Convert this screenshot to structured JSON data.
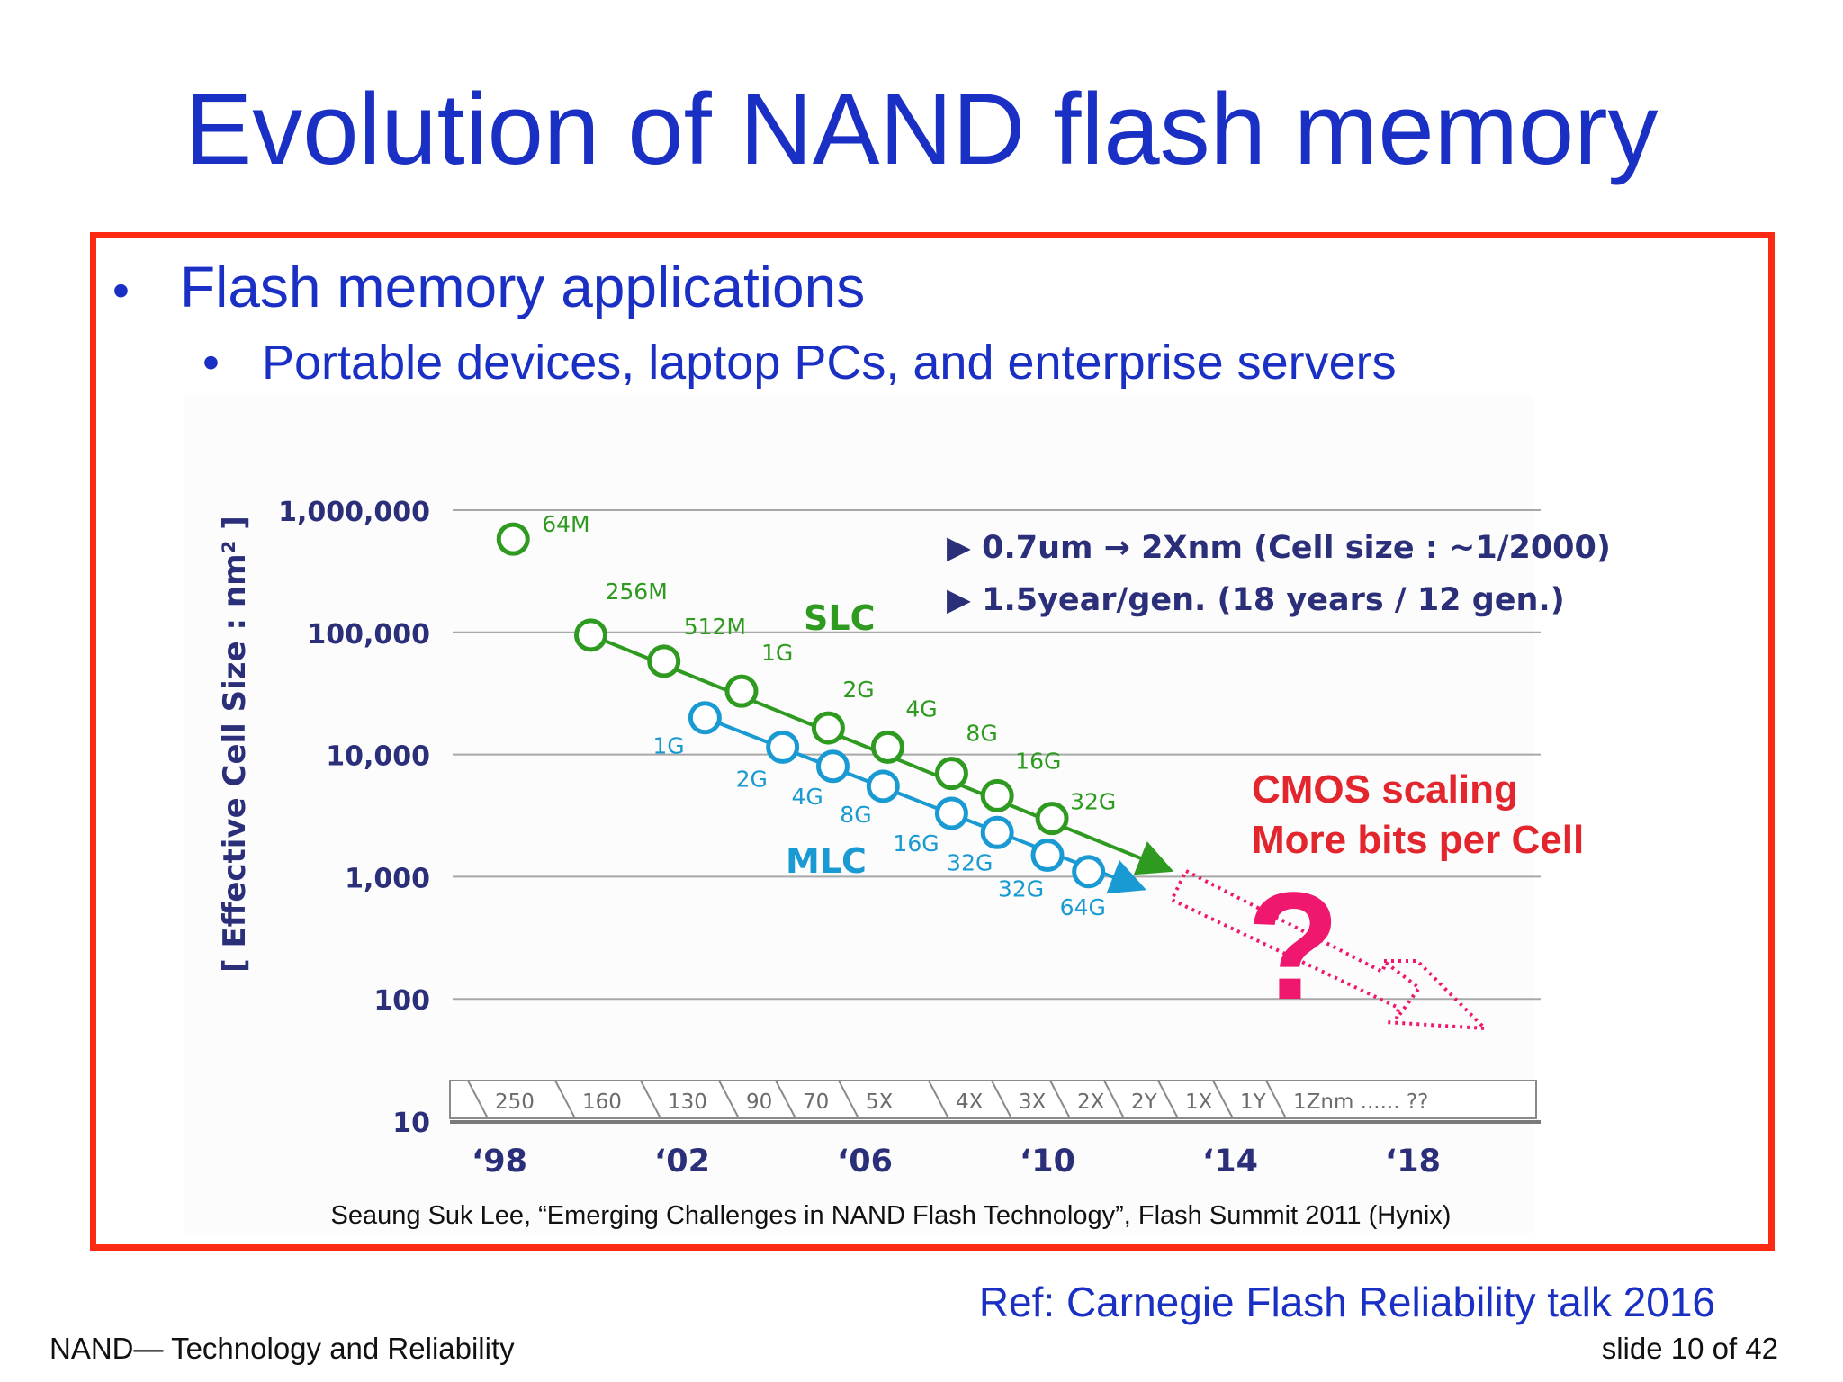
{
  "slide": {
    "title": "Evolution of NAND flash memory",
    "bullet_level1": "Flash memory applications",
    "bullet_level2": "Portable devices, laptop PCs, and enterprise servers",
    "bullet_symbol": "•",
    "reference": "Ref: Carnegie Flash Reliability talk 2016",
    "footer_left": "NAND— Technology and Reliability",
    "footer_right": "slide 10 of 42"
  },
  "colors": {
    "title": "#1a2fc4",
    "frame": "#ff2a12",
    "slc": "#2e9a1f",
    "mlc": "#1a9ad2",
    "axis_text": "#2b2f7a",
    "emphasis": "#e3262e",
    "question": "#f0176e"
  },
  "chart_data": {
    "type": "scatter",
    "scale": "log",
    "ylabel": "[ Effective Cell Size : nm² ]",
    "ylim": [
      10,
      1000000
    ],
    "y_ticks": [
      {
        "value": 1000000,
        "label": "1,000,000"
      },
      {
        "value": 100000,
        "label": "100,000"
      },
      {
        "value": 10000,
        "label": "10,000"
      },
      {
        "value": 1000,
        "label": "1,000"
      },
      {
        "value": 100,
        "label": "100"
      },
      {
        "value": 10,
        "label": "10"
      }
    ],
    "xlim": [
      1998,
      2020
    ],
    "x_ticks": [
      {
        "value": 1998,
        "label": "‘98"
      },
      {
        "value": 2002,
        "label": "‘02"
      },
      {
        "value": 2006,
        "label": "‘06"
      },
      {
        "value": 2010,
        "label": "‘10"
      },
      {
        "value": 2014,
        "label": "‘14"
      },
      {
        "value": 2018,
        "label": "‘18"
      }
    ],
    "series": [
      {
        "name": "SLC",
        "color": "#2e9a1f",
        "points": [
          {
            "x": 1998.3,
            "y": 580000,
            "label": "64M",
            "connected": false
          },
          {
            "x": 2000.0,
            "y": 95000,
            "label": "256M"
          },
          {
            "x": 2001.6,
            "y": 58000,
            "label": "512M"
          },
          {
            "x": 2003.3,
            "y": 33000,
            "label": "1G"
          },
          {
            "x": 2005.2,
            "y": 16500,
            "label": "2G"
          },
          {
            "x": 2006.5,
            "y": 11500,
            "label": "4G"
          },
          {
            "x": 2007.9,
            "y": 7000,
            "label": "8G"
          },
          {
            "x": 2008.9,
            "y": 4600,
            "label": "16G"
          },
          {
            "x": 2010.1,
            "y": 3000,
            "label": "32G"
          }
        ],
        "trend_end": {
          "x": 2012.4,
          "y": 1250
        }
      },
      {
        "name": "MLC",
        "color": "#1a9ad2",
        "points": [
          {
            "x": 2002.5,
            "y": 20000,
            "label": "1G"
          },
          {
            "x": 2004.2,
            "y": 11500,
            "label": "2G"
          },
          {
            "x": 2005.3,
            "y": 8000,
            "label": "4G"
          },
          {
            "x": 2006.4,
            "y": 5500,
            "label": "8G"
          },
          {
            "x": 2007.9,
            "y": 3300,
            "label": "16G"
          },
          {
            "x": 2008.9,
            "y": 2300,
            "label": "32G"
          },
          {
            "x": 2010.0,
            "y": 1500,
            "label": "32G"
          },
          {
            "x": 2010.9,
            "y": 1100,
            "label": "64G"
          }
        ],
        "trend_end": {
          "x": 2011.8,
          "y": 880
        }
      }
    ],
    "node_labels": [
      "250",
      "160",
      "130",
      "90",
      "70",
      "5X",
      "4X",
      "3X",
      "2X",
      "2Y",
      "1X",
      "1Y",
      "1Znm ...... ??"
    ],
    "annotations": {
      "line1": "▶ 0.7um → 2Xnm (Cell size : ~1/2000)",
      "line2": "▶ 1.5year/gen. (18 years / 12 gen.)",
      "slc_label": "SLC",
      "mlc_label": "MLC",
      "cmos1": "CMOS scaling",
      "cmos2": "More bits per Cell",
      "question": "?"
    },
    "caption": "Seaung Suk Lee, “Emerging Challenges in NAND Flash Technology”, Flash Summit 2011 (Hynix)"
  }
}
